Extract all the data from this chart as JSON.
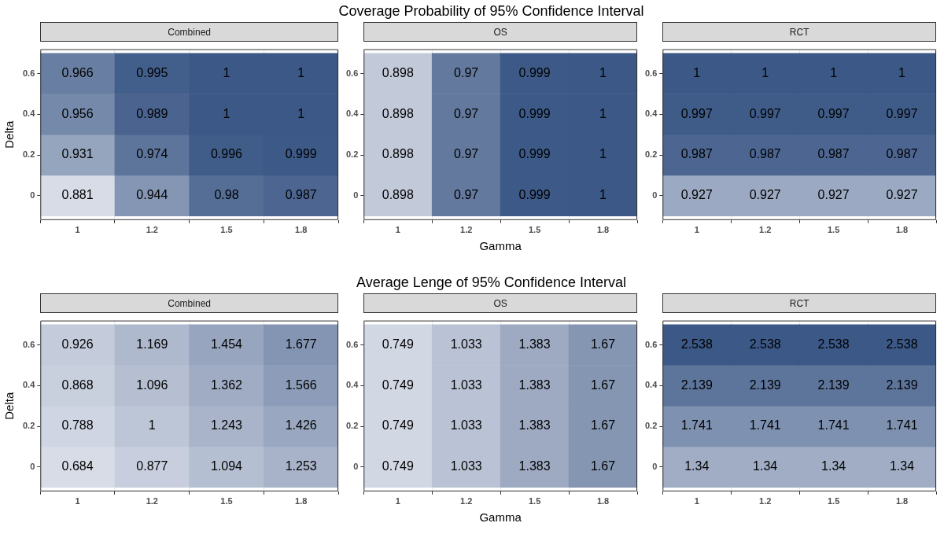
{
  "chart_data": [
    {
      "type": "heatmap",
      "subtitle": "Combined",
      "ylabel": "Delta",
      "categories": [
        "1",
        "1.2",
        "1.5",
        "1.8"
      ],
      "y_categories": [
        "0.6",
        "0.4",
        "0.2",
        "0"
      ],
      "cells": [
        [
          0.966,
          0.995,
          1,
          1
        ],
        [
          0.956,
          0.989,
          1,
          1
        ],
        [
          0.931,
          0.974,
          0.996,
          0.999
        ],
        [
          0.881,
          0.944,
          0.98,
          0.987
        ]
      ],
      "data_labels": true,
      "grid": true
    },
    {
      "type": "heatmap",
      "title": "Coverage Probability of 95% Confidence Interval",
      "subtitle": "OS",
      "xlabel": "Gamma",
      "categories": [
        "1",
        "1.2",
        "1.5",
        "1.8"
      ],
      "y_categories": [
        "0.6",
        "0.4",
        "0.2",
        "0"
      ],
      "cells": [
        [
          0.898,
          0.97,
          0.999,
          1
        ],
        [
          0.898,
          0.97,
          0.999,
          1
        ],
        [
          0.898,
          0.97,
          0.999,
          1
        ],
        [
          0.898,
          0.97,
          0.999,
          1
        ]
      ],
      "data_labels": true,
      "grid": true
    },
    {
      "type": "heatmap",
      "subtitle": "RCT",
      "categories": [
        "1",
        "1.2",
        "1.5",
        "1.8"
      ],
      "y_categories": [
        "0.6",
        "0.4",
        "0.2",
        "0"
      ],
      "cells": [
        [
          1,
          1,
          1,
          1
        ],
        [
          0.997,
          0.997,
          0.997,
          0.997
        ],
        [
          0.987,
          0.987,
          0.987,
          0.987
        ],
        [
          0.927,
          0.927,
          0.927,
          0.927
        ]
      ],
      "data_labels": true,
      "grid": true
    },
    {
      "type": "heatmap",
      "subtitle": "Combined",
      "ylabel": "Delta",
      "categories": [
        "1",
        "1.2",
        "1.5",
        "1.8"
      ],
      "y_categories": [
        "0.6",
        "0.4",
        "0.2",
        "0"
      ],
      "cells": [
        [
          0.926,
          1.169,
          1.454,
          1.677
        ],
        [
          0.868,
          1.096,
          1.362,
          1.566
        ],
        [
          0.788,
          1,
          1.243,
          1.426
        ],
        [
          0.684,
          0.877,
          1.094,
          1.253
        ]
      ],
      "data_labels": true,
      "grid": true
    },
    {
      "type": "heatmap",
      "title": "Average Lenge of 95% Confidence Interval",
      "subtitle": "OS",
      "xlabel": "Gamma",
      "categories": [
        "1",
        "1.2",
        "1.5",
        "1.8"
      ],
      "y_categories": [
        "0.6",
        "0.4",
        "0.2",
        "0"
      ],
      "cells": [
        [
          0.749,
          1.033,
          1.383,
          1.67
        ],
        [
          0.749,
          1.033,
          1.383,
          1.67
        ],
        [
          0.749,
          1.033,
          1.383,
          1.67
        ],
        [
          0.749,
          1.033,
          1.383,
          1.67
        ]
      ],
      "data_labels": true,
      "grid": true
    },
    {
      "type": "heatmap",
      "subtitle": "RCT",
      "categories": [
        "1",
        "1.2",
        "1.5",
        "1.8"
      ],
      "y_categories": [
        "0.6",
        "0.4",
        "0.2",
        "0"
      ],
      "cells": [
        [
          2.538,
          2.538,
          2.538,
          2.538
        ],
        [
          2.139,
          2.139,
          2.139,
          2.139
        ],
        [
          1.741,
          1.741,
          1.741,
          1.741
        ],
        [
          1.34,
          1.34,
          1.34,
          1.34
        ]
      ],
      "data_labels": true,
      "grid": true
    }
  ]
}
